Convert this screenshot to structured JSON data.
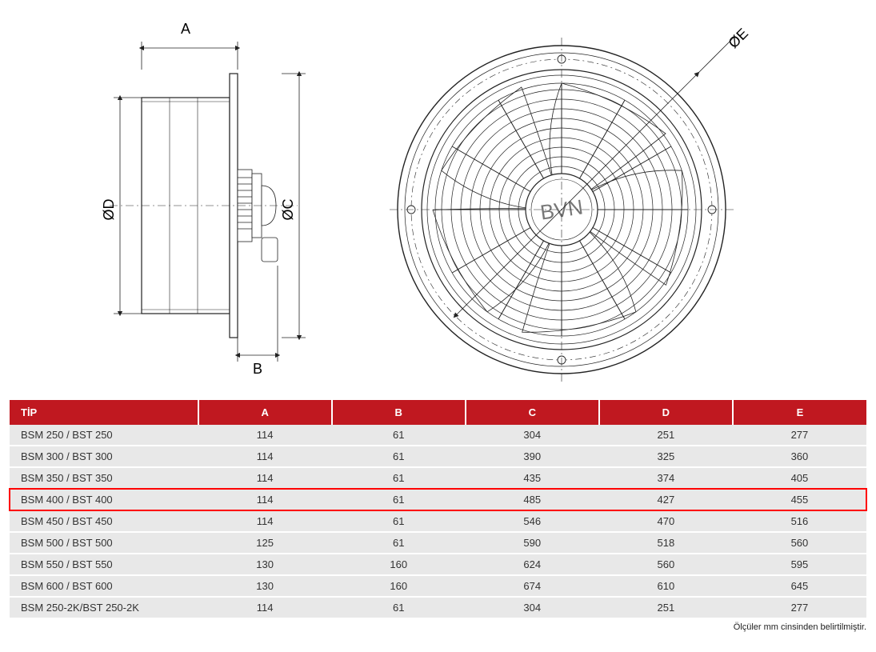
{
  "diagram": {
    "brand_text": "BVN",
    "dim_labels": {
      "A": "A",
      "B": "B",
      "C": "C",
      "D": "D",
      "E": "E"
    },
    "diameter_prefix": "Ø",
    "stroke_color": "#222222",
    "stroke_width": 1,
    "thin_stroke_width": 0.6,
    "arrow_fill": "#222222",
    "label_fontsize": 18,
    "brand_fontsize": 28,
    "brand_color": "#777777"
  },
  "table": {
    "header_bg": "#c01820",
    "header_fg": "#ffffff",
    "row_bg": "#e8e8e8",
    "row_fg": "#333333",
    "highlight_color": "#ff0000",
    "highlighted_row_index": 3,
    "columns": [
      "TİP",
      "A",
      "B",
      "C",
      "D",
      "E"
    ],
    "col_widths": [
      "22%",
      "15.6%",
      "15.6%",
      "15.6%",
      "15.6%",
      "15.6%"
    ],
    "rows": [
      [
        "BSM 250 / BST 250",
        "114",
        "61",
        "304",
        "251",
        "277"
      ],
      [
        "BSM 300 / BST 300",
        "114",
        "61",
        "390",
        "325",
        "360"
      ],
      [
        "BSM 350 / BST 350",
        "114",
        "61",
        "435",
        "374",
        "405"
      ],
      [
        "BSM 400 / BST 400",
        "114",
        "61",
        "485",
        "427",
        "455"
      ],
      [
        "BSM 450 / BST 450",
        "114",
        "61",
        "546",
        "470",
        "516"
      ],
      [
        "BSM 500 / BST 500",
        "125",
        "61",
        "590",
        "518",
        "560"
      ],
      [
        "BSM 550 / BST 550",
        "130",
        "160",
        "624",
        "560",
        "595"
      ],
      [
        "BSM 600 / BST 600",
        "130",
        "160",
        "674",
        "610",
        "645"
      ],
      [
        "BSM 250-2K/BST 250-2K",
        "114",
        "61",
        "304",
        "251",
        "277"
      ]
    ],
    "footnote": "Ölçüler mm cinsinden belirtilmiştir."
  }
}
